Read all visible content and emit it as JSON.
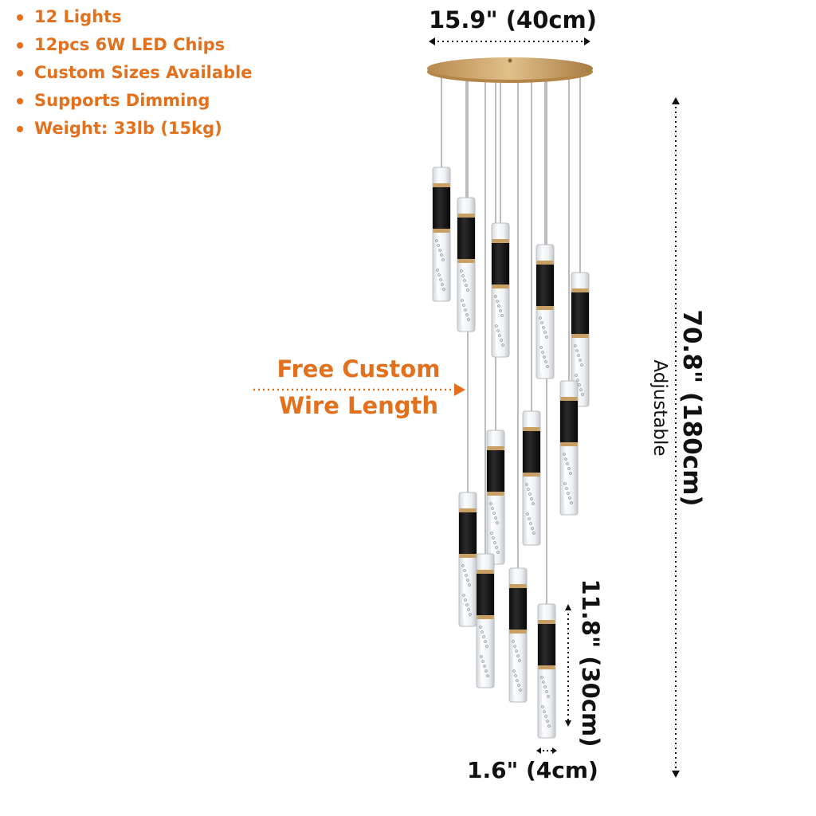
{
  "features": [
    "12 Lights",
    "12pcs 6W LED Chips",
    "Custom Sizes Available",
    "Supports Dimming",
    "Weight: 33lb (15kg)"
  ],
  "dimensions": {
    "canopy_width": "15.9\" (40cm)",
    "overall_height": "70.8\" (180cm)",
    "adjustable": "Adjustable",
    "tube_length": "11.8\" (30cm)",
    "tube_diameter": "1.6\" (4cm)"
  },
  "callout": {
    "line1": "Free Custom",
    "line2": "Wire Length"
  },
  "colors": {
    "accent": "#e2701d",
    "brass": "#c9a063",
    "dimension_text": "#111111"
  }
}
